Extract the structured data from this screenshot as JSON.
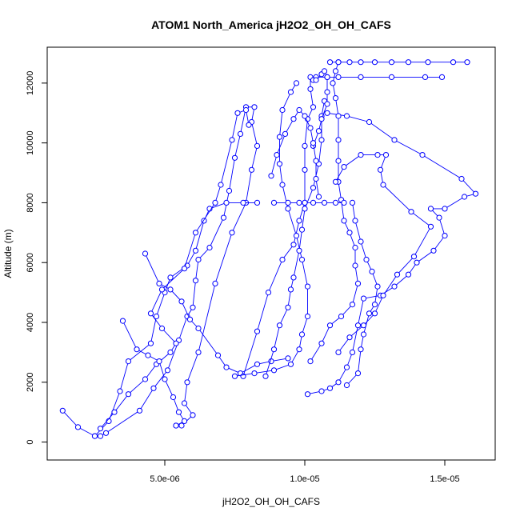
{
  "chart_data": {
    "type": "scatter",
    "title": "ATOM1 North_America jH2O2_OH_OH_CAFS",
    "xlabel": "jH2O2_OH_OH_CAFS",
    "ylabel": "Altitude (m)",
    "xlim": [
      8e-07,
      1.68e-05
    ],
    "ylim": [
      -600,
      13200
    ],
    "x_ticks": [
      5e-06,
      1e-05,
      1.5e-05
    ],
    "x_tick_labels": [
      "5.0e-06",
      "1.0e-05",
      "1.5e-05"
    ],
    "y_ticks": [
      0,
      2000,
      4000,
      6000,
      8000,
      10000,
      12000
    ],
    "y_tick_labels": [
      "0",
      "2000",
      "4000",
      "6000",
      "8000",
      "10000",
      "12000"
    ],
    "grid": false,
    "legend": "none",
    "color": "#0000ff",
    "series": [
      {
        "points": [
          [
            1.35e-06,
            1050
          ],
          [
            1.9e-06,
            500
          ],
          [
            2.5e-06,
            200
          ],
          [
            2.7e-06,
            200
          ],
          [
            2.9e-06,
            300
          ],
          [
            4.1e-06,
            1050
          ],
          [
            4.6e-06,
            1800
          ],
          [
            5.1e-06,
            2400
          ],
          [
            5.5e-06,
            3400
          ],
          [
            5.8e-06,
            4200
          ],
          [
            6e-06,
            4500
          ],
          [
            6.1e-06,
            5400
          ],
          [
            6.2e-06,
            6100
          ],
          [
            6.6e-06,
            6500
          ],
          [
            7.1e-06,
            7500
          ],
          [
            7.3e-06,
            8400
          ],
          [
            7.5e-06,
            9500
          ],
          [
            7.7e-06,
            10300
          ],
          [
            7.9e-06,
            11200
          ],
          [
            8.2e-06,
            11200
          ],
          [
            8.1e-06,
            10700
          ],
          [
            8.3e-06,
            9900
          ],
          [
            8.1e-06,
            9100
          ],
          [
            7.9e-06,
            8000
          ],
          [
            7.4e-06,
            7000
          ],
          [
            6.8e-06,
            5300
          ],
          [
            6.2e-06,
            3000
          ],
          [
            5.8e-06,
            2000
          ],
          [
            5.7e-06,
            1300
          ],
          [
            6e-06,
            900
          ],
          [
            5.6e-06,
            550
          ],
          [
            5.4e-06,
            550
          ]
        ]
      },
      {
        "points": [
          [
            2.5e-06,
            200
          ],
          [
            3e-06,
            700
          ],
          [
            3.4e-06,
            1700
          ],
          [
            3.7e-06,
            2700
          ],
          [
            4.5e-06,
            3300
          ],
          [
            4.7e-06,
            4200
          ],
          [
            5e-06,
            5000
          ],
          [
            5.2e-06,
            5500
          ],
          [
            5.8e-06,
            5900
          ],
          [
            6.1e-06,
            6400
          ],
          [
            6.4e-06,
            7400
          ],
          [
            6.6e-06,
            7800
          ],
          [
            7.2e-06,
            8000
          ],
          [
            7.8e-06,
            8000
          ],
          [
            8.3e-06,
            8000
          ]
        ]
      },
      {
        "points": [
          [
            2.7e-06,
            450
          ],
          [
            3.2e-06,
            1000
          ],
          [
            3.7e-06,
            1600
          ],
          [
            4.3e-06,
            2100
          ],
          [
            4.7e-06,
            2600
          ],
          [
            5.2e-06,
            3000
          ],
          [
            5.4e-06,
            3300
          ],
          [
            4.9e-06,
            3800
          ],
          [
            4.5e-06,
            4300
          ],
          [
            4.9e-06,
            5100
          ],
          [
            5.7e-06,
            5800
          ],
          [
            6.1e-06,
            7000
          ],
          [
            6.8e-06,
            8000
          ],
          [
            7e-06,
            8600
          ],
          [
            7.4e-06,
            10100
          ],
          [
            7.6e-06,
            11000
          ],
          [
            7.9e-06,
            11100
          ],
          [
            8e-06,
            10600
          ]
        ]
      },
      {
        "points": [
          [
            3.5e-06,
            4050
          ],
          [
            4e-06,
            3100
          ],
          [
            4.4e-06,
            2900
          ],
          [
            4.8e-06,
            2700
          ],
          [
            5e-06,
            2100
          ],
          [
            5.3e-06,
            1500
          ],
          [
            5.5e-06,
            1000
          ],
          [
            5.7e-06,
            700
          ],
          [
            5.4e-06,
            550
          ]
        ]
      },
      {
        "points": [
          [
            4.3e-06,
            6300
          ],
          [
            4.8e-06,
            5300
          ],
          [
            5.2e-06,
            5100
          ],
          [
            5.6e-06,
            4700
          ],
          [
            5.9e-06,
            4100
          ],
          [
            6.2e-06,
            3800
          ],
          [
            6.9e-06,
            2900
          ],
          [
            7.2e-06,
            2500
          ],
          [
            7.7e-06,
            2300
          ],
          [
            8.3e-06,
            2600
          ],
          [
            8.8e-06,
            2700
          ],
          [
            9.4e-06,
            2800
          ]
        ]
      },
      {
        "points": [
          [
            7.8e-06,
            2200
          ],
          [
            8.3e-06,
            3700
          ],
          [
            8.7e-06,
            5000
          ],
          [
            9.2e-06,
            6100
          ],
          [
            9.6e-06,
            6600
          ],
          [
            9.8e-06,
            7400
          ],
          [
            1e-05,
            8000
          ],
          [
            1e-05,
            9100
          ],
          [
            1e-05,
            9900
          ],
          [
            1.01e-05,
            10800
          ],
          [
            1.03e-05,
            11200
          ],
          [
            1.02e-05,
            11800
          ],
          [
            1.02e-05,
            12200
          ],
          [
            1.04e-05,
            12200
          ],
          [
            1.08e-05,
            12200
          ],
          [
            1.12e-05,
            12200
          ],
          [
            1.2e-05,
            12200
          ],
          [
            1.31e-05,
            12200
          ],
          [
            1.43e-05,
            12200
          ],
          [
            1.49e-05,
            12200
          ]
        ]
      },
      {
        "points": [
          [
            7.5e-06,
            2200
          ],
          [
            8.2e-06,
            2300
          ],
          [
            8.9e-06,
            2400
          ],
          [
            9.5e-06,
            2600
          ],
          [
            9.8e-06,
            3100
          ],
          [
            9.9e-06,
            3600
          ],
          [
            1.01e-05,
            4200
          ],
          [
            1.01e-05,
            5200
          ],
          [
            9.9e-06,
            6100
          ],
          [
            9.7e-06,
            6900
          ],
          [
            9.4e-06,
            7800
          ],
          [
            9.2e-06,
            8600
          ],
          [
            9.1e-06,
            9300
          ],
          [
            9.1e-06,
            10200
          ],
          [
            9.2e-06,
            11100
          ],
          [
            9.5e-06,
            11700
          ],
          [
            9.7e-06,
            12000
          ]
        ]
      },
      {
        "points": [
          [
            8.6e-06,
            2200
          ],
          [
            8.9e-06,
            3100
          ],
          [
            9.1e-06,
            3900
          ],
          [
            9.4e-06,
            4500
          ],
          [
            9.5e-06,
            5100
          ],
          [
            9.6e-06,
            5500
          ],
          [
            9.8e-06,
            6400
          ],
          [
            9.9e-06,
            7100
          ],
          [
            1e-05,
            7800
          ],
          [
            1.03e-05,
            8500
          ],
          [
            1.05e-05,
            9300
          ],
          [
            1.06e-05,
            10100
          ],
          [
            1.06e-05,
            10900
          ],
          [
            1.07e-05,
            11400
          ]
        ]
      },
      {
        "points": [
          [
            1.01e-05,
            1600
          ],
          [
            1.06e-05,
            1700
          ],
          [
            1.09e-05,
            1800
          ],
          [
            1.12e-05,
            2000
          ],
          [
            1.15e-05,
            2500
          ],
          [
            1.17e-05,
            3000
          ],
          [
            1.19e-05,
            3900
          ],
          [
            1.21e-05,
            4800
          ],
          [
            1.27e-05,
            4900
          ],
          [
            1.32e-05,
            5200
          ],
          [
            1.37e-05,
            5600
          ],
          [
            1.4e-05,
            6000
          ],
          [
            1.46e-05,
            6400
          ],
          [
            1.5e-05,
            6900
          ],
          [
            1.48e-05,
            7500
          ],
          [
            1.45e-05,
            7800
          ],
          [
            1.5e-05,
            7800
          ],
          [
            1.57e-05,
            8200
          ],
          [
            1.61e-05,
            8300
          ],
          [
            1.56e-05,
            8800
          ],
          [
            1.42e-05,
            9600
          ],
          [
            1.32e-05,
            10100
          ],
          [
            1.23e-05,
            10700
          ],
          [
            1.15e-05,
            10900
          ],
          [
            1.08e-05,
            11000
          ]
        ]
      },
      {
        "points": [
          [
            1.02e-05,
            2700
          ],
          [
            1.06e-05,
            3300
          ],
          [
            1.09e-05,
            3900
          ],
          [
            1.13e-05,
            4200
          ],
          [
            1.17e-05,
            4600
          ],
          [
            1.19e-05,
            5300
          ],
          [
            1.18e-05,
            5900
          ],
          [
            1.18e-05,
            6500
          ],
          [
            1.16e-05,
            7000
          ],
          [
            1.14e-05,
            7400
          ],
          [
            1.13e-05,
            8100
          ],
          [
            1.12e-05,
            8700
          ],
          [
            1.12e-05,
            9400
          ],
          [
            1.12e-05,
            10100
          ],
          [
            1.12e-05,
            10900
          ],
          [
            1.11e-05,
            11500
          ],
          [
            1.1e-05,
            12000
          ],
          [
            1.11e-05,
            12400
          ],
          [
            1.12e-05,
            12700
          ]
        ]
      },
      {
        "points": [
          [
            1.09e-05,
            12700
          ],
          [
            1.12e-05,
            12700
          ],
          [
            1.16e-05,
            12700
          ],
          [
            1.2e-05,
            12700
          ],
          [
            1.25e-05,
            12700
          ],
          [
            1.31e-05,
            12700
          ],
          [
            1.37e-05,
            12700
          ],
          [
            1.44e-05,
            12700
          ],
          [
            1.53e-05,
            12700
          ],
          [
            1.58e-05,
            12700
          ]
        ]
      },
      {
        "points": [
          [
            8.9e-06,
            8000
          ],
          [
            9.4e-06,
            8000
          ],
          [
            9.8e-06,
            8000
          ],
          [
            1e-05,
            8000
          ],
          [
            1.03e-05,
            8000
          ],
          [
            1.07e-05,
            8000
          ],
          [
            1.11e-05,
            8000
          ],
          [
            1.14e-05,
            8000
          ]
        ]
      },
      {
        "points": [
          [
            1.12e-05,
            3000
          ],
          [
            1.16e-05,
            3500
          ],
          [
            1.21e-05,
            3900
          ],
          [
            1.25e-05,
            4300
          ],
          [
            1.28e-05,
            4900
          ],
          [
            1.33e-05,
            5600
          ],
          [
            1.39e-05,
            6200
          ],
          [
            1.45e-05,
            7200
          ],
          [
            1.38e-05,
            7700
          ],
          [
            1.28e-05,
            8600
          ],
          [
            1.27e-05,
            9100
          ],
          [
            1.29e-05,
            9600
          ],
          [
            1.26e-05,
            9600
          ],
          [
            1.2e-05,
            9600
          ],
          [
            1.14e-05,
            9200
          ],
          [
            1.11e-05,
            8700
          ]
        ]
      },
      {
        "points": [
          [
            1.15e-05,
            1900
          ],
          [
            1.19e-05,
            2300
          ],
          [
            1.2e-05,
            3100
          ],
          [
            1.21e-05,
            3600
          ],
          [
            1.23e-05,
            4300
          ],
          [
            1.25e-05,
            4600
          ],
          [
            1.26e-05,
            5200
          ],
          [
            1.24e-05,
            5700
          ],
          [
            1.22e-05,
            6100
          ],
          [
            1.2e-05,
            6700
          ],
          [
            1.18e-05,
            7400
          ],
          [
            1.17e-05,
            8000
          ]
        ]
      },
      {
        "points": [
          [
            1.03e-05,
            12100
          ],
          [
            1.04e-05,
            12100
          ],
          [
            1.06e-05,
            12300
          ],
          [
            1.07e-05,
            12400
          ],
          [
            1.08e-05,
            12200
          ],
          [
            1.08e-05,
            11700
          ],
          [
            1.08e-05,
            11300
          ],
          [
            1.06e-05,
            10800
          ],
          [
            1.05e-05,
            10400
          ],
          [
            1.03e-05,
            9900
          ]
        ]
      },
      {
        "points": [
          [
            8.8e-06,
            8900
          ],
          [
            9e-06,
            9600
          ],
          [
            9.3e-06,
            10300
          ],
          [
            9.6e-06,
            10800
          ],
          [
            9.8e-06,
            11100
          ],
          [
            1e-05,
            10900
          ],
          [
            1.02e-05,
            10500
          ],
          [
            1.03e-05,
            10000
          ],
          [
            1.04e-05,
            9400
          ],
          [
            1.04e-05,
            8800
          ],
          [
            1.05e-05,
            8200
          ]
        ]
      }
    ]
  }
}
